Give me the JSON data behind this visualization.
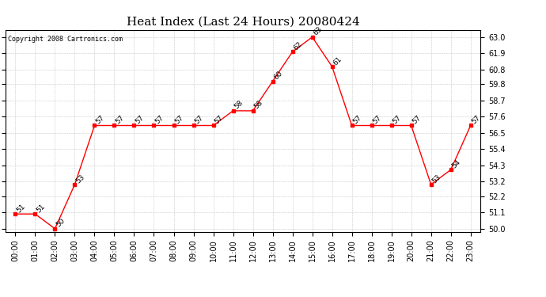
{
  "title": "Heat Index (Last 24 Hours) 20080424",
  "copyright": "Copyright 2008 Cartronics.com",
  "hours": [
    "00:00",
    "01:00",
    "02:00",
    "03:00",
    "04:00",
    "05:00",
    "06:00",
    "07:00",
    "08:00",
    "09:00",
    "10:00",
    "11:00",
    "12:00",
    "13:00",
    "14:00",
    "15:00",
    "16:00",
    "17:00",
    "18:00",
    "19:00",
    "20:00",
    "21:00",
    "22:00",
    "23:00"
  ],
  "values": [
    51,
    51,
    50,
    53,
    57,
    57,
    57,
    57,
    57,
    57,
    57,
    58,
    58,
    60,
    62,
    63,
    61,
    57,
    57,
    57,
    57,
    53,
    54,
    57
  ],
  "ylim_min": 49.8,
  "ylim_max": 63.5,
  "yticks": [
    50.0,
    51.1,
    52.2,
    53.2,
    54.3,
    55.4,
    56.5,
    57.6,
    58.7,
    59.8,
    60.8,
    61.9,
    63.0
  ],
  "line_color": "red",
  "marker_color": "red",
  "bg_color": "white",
  "grid_color": "#bbbbbb",
  "title_fontsize": 11,
  "tick_fontsize": 7,
  "annot_fontsize": 6.5,
  "copyright_fontsize": 6
}
